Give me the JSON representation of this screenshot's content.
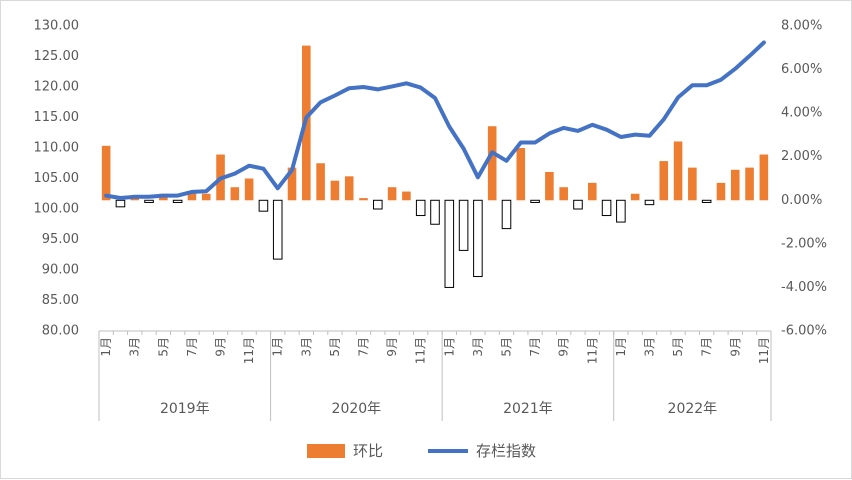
{
  "chart_data": {
    "type": "bar+line",
    "title": "",
    "y_left": {
      "ticks": [
        "80.00",
        "85.00",
        "90.00",
        "95.00",
        "100.00",
        "105.00",
        "110.00",
        "115.00",
        "120.00",
        "125.00",
        "130.00"
      ],
      "ylim": [
        80,
        130
      ]
    },
    "y_right": {
      "ticks": [
        "-6.00%",
        "-4.00%",
        "-2.00%",
        "0.00%",
        "2.00%",
        "4.00%",
        "6.00%",
        "8.00%"
      ],
      "ylim": [
        -6,
        8
      ]
    },
    "month_labels": [
      "1月",
      "",
      "3月",
      "",
      "5月",
      "",
      "7月",
      "",
      "9月",
      "",
      "11月",
      ""
    ],
    "years": [
      "2019年",
      "2020年",
      "2021年",
      "2022年"
    ],
    "months_per_year": [
      12,
      12,
      12,
      11
    ],
    "grid": false,
    "legend": {
      "position": "bottom",
      "items": [
        {
          "label": "环比",
          "type": "bar",
          "color": "#ED7D31"
        },
        {
          "label": "存栏指数",
          "type": "line",
          "color": "#4472C4"
        }
      ]
    },
    "colors": {
      "positive_bar": "#ED7D31",
      "negative_bar_fill": "#ffffff",
      "negative_bar_stroke": "#000000",
      "line": "#4472C4",
      "axis": "#bfbfbf",
      "text": "#595959"
    },
    "series": [
      {
        "name": "环比",
        "axis": "right",
        "values": [
          2.5,
          -0.3,
          0.2,
          -0.1,
          0.3,
          -0.1,
          0.4,
          0.3,
          2.1,
          0.6,
          1.0,
          -0.5,
          -2.7,
          1.5,
          7.1,
          1.7,
          0.9,
          1.1,
          0.1,
          -0.4,
          0.6,
          0.4,
          -0.7,
          -1.1,
          -4.0,
          -2.3,
          -3.5,
          3.4,
          -1.3,
          2.4,
          -0.1,
          1.3,
          0.6,
          -0.4,
          0.8,
          -0.7,
          -1.0,
          0.3,
          -0.2,
          1.8,
          2.7,
          1.5,
          -0.1,
          0.8,
          1.4,
          1.5,
          2.1
        ]
      },
      {
        "name": "存栏指数",
        "axis": "left",
        "values": [
          102.2,
          101.8,
          102.0,
          102.0,
          102.2,
          102.2,
          102.8,
          102.9,
          105.0,
          105.8,
          107.1,
          106.6,
          103.4,
          106.4,
          115.0,
          117.5,
          118.6,
          119.8,
          120.0,
          119.6,
          120.1,
          120.6,
          119.9,
          118.2,
          113.5,
          109.9,
          105.2,
          109.3,
          107.9,
          110.9,
          110.9,
          112.4,
          113.3,
          112.8,
          113.8,
          113.0,
          111.8,
          112.2,
          112.0,
          114.7,
          118.3,
          120.3,
          120.3,
          121.2,
          123.0,
          125.1,
          127.3
        ]
      }
    ]
  }
}
